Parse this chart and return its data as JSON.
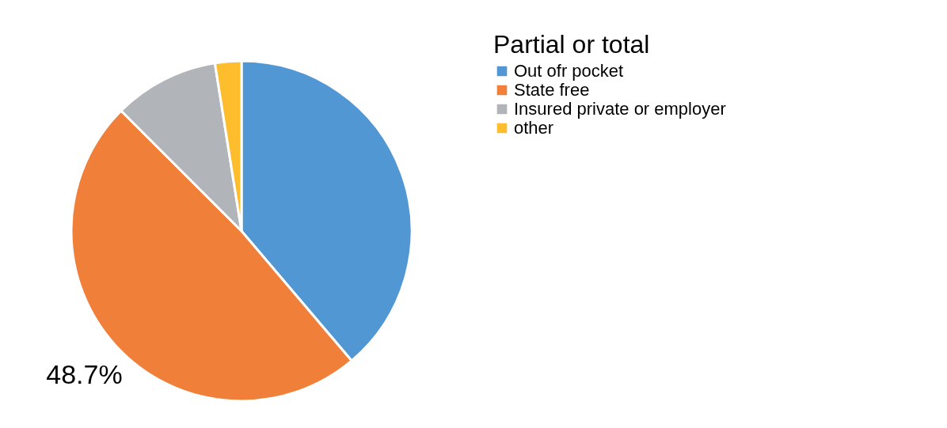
{
  "chart_data": {
    "type": "pie",
    "legend_title": "Partial or total",
    "categories": [
      "Out ofr pocket",
      "State free",
      "Insured private or employer",
      "other"
    ],
    "values": [
      38.8,
      48.7,
      10,
      2.5
    ],
    "colors": [
      "#5197d3",
      "#ef7f39",
      "#b1b4b8",
      "#fdbd2d"
    ],
    "value_labels": [
      null,
      "48.7%",
      null,
      null
    ],
    "legend": "right"
  }
}
